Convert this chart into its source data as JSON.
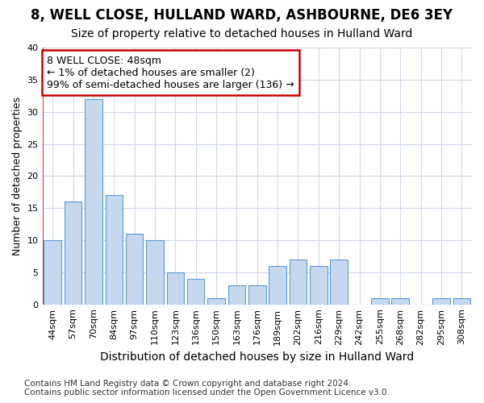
{
  "title": "8, WELL CLOSE, HULLAND WARD, ASHBOURNE, DE6 3EY",
  "subtitle": "Size of property relative to detached houses in Hulland Ward",
  "xlabel": "Distribution of detached houses by size in Hulland Ward",
  "ylabel": "Number of detached properties",
  "categories": [
    "44sqm",
    "57sqm",
    "70sqm",
    "84sqm",
    "97sqm",
    "110sqm",
    "123sqm",
    "136sqm",
    "150sqm",
    "163sqm",
    "176sqm",
    "189sqm",
    "202sqm",
    "216sqm",
    "229sqm",
    "242sqm",
    "255sqm",
    "268sqm",
    "282sqm",
    "295sqm",
    "308sqm"
  ],
  "values": [
    10,
    16,
    32,
    17,
    11,
    10,
    5,
    4,
    1,
    3,
    3,
    6,
    7,
    6,
    7,
    0,
    1,
    1,
    0,
    1,
    1
  ],
  "bar_color": "#c5d8ee",
  "bar_edge_color": "#5b9bd5",
  "annotation_text": "8 WELL CLOSE: 48sqm\n← 1% of detached houses are smaller (2)\n99% of semi-detached houses are larger (136) →",
  "annotation_box_facecolor": "#ffffff",
  "annotation_box_edgecolor": "#cc0000",
  "annotation_line_color": "#cc0000",
  "ylim": [
    0,
    40
  ],
  "yticks": [
    0,
    5,
    10,
    15,
    20,
    25,
    30,
    35,
    40
  ],
  "footer_line1": "Contains HM Land Registry data © Crown copyright and database right 2024.",
  "footer_line2": "Contains public sector information licensed under the Open Government Licence v3.0.",
  "bg_color": "#ffffff",
  "plot_bg_color": "#ffffff",
  "grid_color": "#d0d8e8",
  "title_fontsize": 12,
  "subtitle_fontsize": 10,
  "xlabel_fontsize": 10,
  "ylabel_fontsize": 9,
  "tick_fontsize": 8,
  "annotation_fontsize": 9,
  "footer_fontsize": 7.5
}
